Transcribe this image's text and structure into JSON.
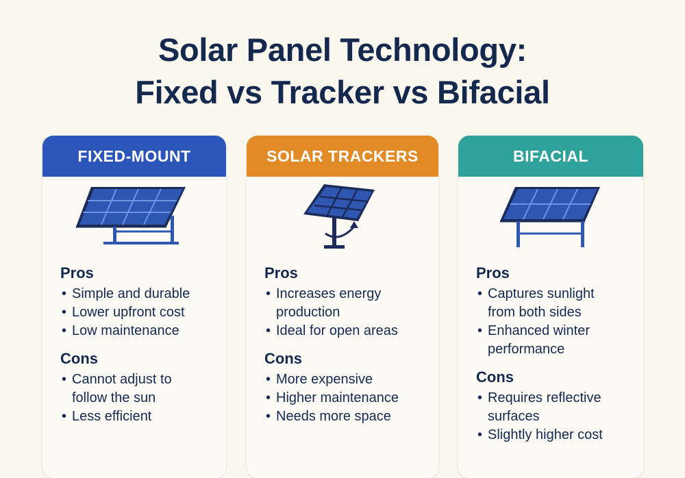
{
  "title": {
    "line1": "Solar Panel Technology:",
    "line2": "Fixed vs Tracker vs Bifacial"
  },
  "colors": {
    "background": "#faf7ee",
    "text": "#15294f",
    "fixed_header": "#2b55b8",
    "tracker_header": "#e28a25",
    "bifacial_header": "#2fa39b",
    "panel_blue": "#2f56b0",
    "frame_dark": "#1b2b5a"
  },
  "cards": [
    {
      "header": "FIXED-MOUNT",
      "icon": "fixed-mount-solar-panel-icon",
      "pros_label": "Pros",
      "pros": [
        "Simple and durable",
        "Lower upfront cost",
        "Low maintenance"
      ],
      "cons_label": "Cons",
      "cons": [
        "Cannot adjust to follow the sun",
        "Less efficient"
      ]
    },
    {
      "header": "SOLAR TRACKERS",
      "icon": "solar-tracker-icon",
      "pros_label": "Pros",
      "pros": [
        "Increases energy production",
        "Ideal for open areas"
      ],
      "cons_label": "Cons",
      "cons": [
        "More expensive",
        "Higher maintenance",
        "Needs more space"
      ]
    },
    {
      "header": "BIFACIAL",
      "icon": "bifacial-solar-panel-icon",
      "pros_label": "Pros",
      "pros": [
        "Captures sunlight from both sides",
        "Enhanced winter performance"
      ],
      "cons_label": "Cons",
      "cons": [
        "Requires reflective surfaces",
        "Slightly higher cost"
      ]
    }
  ]
}
